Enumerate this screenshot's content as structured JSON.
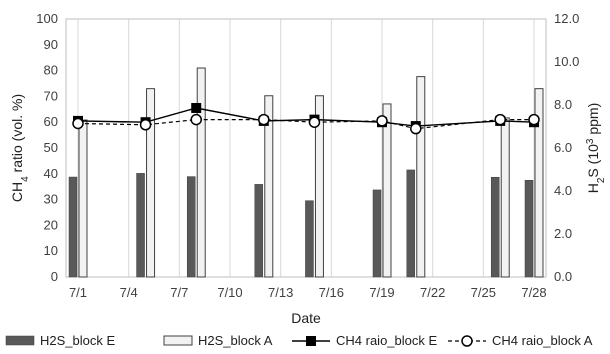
{
  "chart_data": {
    "type": "bar",
    "categories": [
      "7/1",
      "7/5",
      "7/8",
      "7/12",
      "7/15",
      "7/19",
      "7/21",
      "7/26",
      "7/28"
    ],
    "x_ticks": [
      "7/1",
      "7/4",
      "7/7",
      "7/10",
      "7/13",
      "7/16",
      "7/19",
      "7/22",
      "7/25",
      "7/28"
    ],
    "x_day_numbers": [
      1,
      5,
      8,
      12,
      15,
      19,
      21,
      26,
      28
    ],
    "x_range": [
      1,
      28
    ],
    "bar_series": [
      {
        "name": "H2S_block E",
        "axis": "right",
        "color": "#595959",
        "values": [
          4.65,
          4.82,
          4.67,
          4.31,
          3.55,
          4.05,
          4.98,
          4.64,
          4.5
        ]
      },
      {
        "name": "H2S_block A",
        "axis": "right",
        "color": "#f2f2f2",
        "values": [
          7.3,
          8.76,
          9.72,
          8.43,
          8.43,
          8.05,
          9.32,
          7.4,
          8.76
        ]
      }
    ],
    "line_series": [
      {
        "name": "CH4 raio_block E",
        "axis": "left",
        "marker": "filled-square",
        "line": "solid",
        "values": [
          60.5,
          60.0,
          65.5,
          60.5,
          61.0,
          60.0,
          58.5,
          60.5,
          60.0
        ]
      },
      {
        "name": "CH4 raio_block A",
        "axis": "left",
        "marker": "open-circle",
        "line": "dashed",
        "values": [
          59.5,
          59.0,
          61.0,
          61.0,
          60.0,
          60.5,
          57.5,
          61.0,
          61.0
        ]
      }
    ],
    "xlabel": "Date",
    "ylabel_left": {
      "base": "CH",
      "sub": "4",
      "rest": " ratio (vol. %)"
    },
    "ylabel_right": {
      "base": "H",
      "sub": "2",
      "mid": "S (10",
      "sup": "3",
      "rest": " ppm)"
    },
    "ylim_left": [
      0,
      100
    ],
    "yticks_left": [
      "0",
      "10",
      "20",
      "30",
      "40",
      "50",
      "60",
      "70",
      "80",
      "90",
      "100"
    ],
    "ylim_right": [
      0,
      12
    ],
    "yticks_right": [
      "0.0",
      "2.0",
      "4.0",
      "6.0",
      "8.0",
      "10.0",
      "12.0"
    ],
    "grid": "vertical",
    "legend_position": "bottom"
  }
}
